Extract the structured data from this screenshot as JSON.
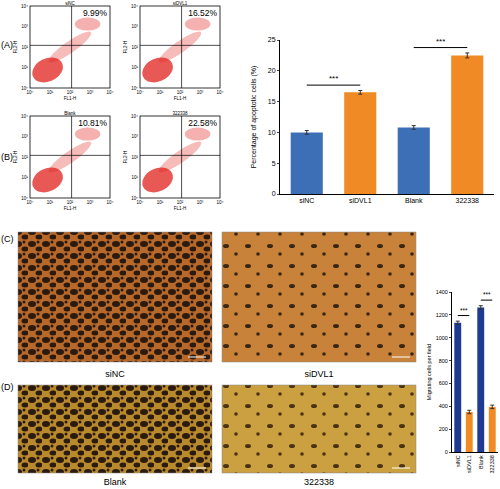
{
  "panels": {
    "labels": [
      "(A)",
      "(B)",
      "(C)",
      "(D)"
    ],
    "flow": {
      "x_label": "FL1-H",
      "y_label": "FL2-H",
      "ticks": [
        "10⁰",
        "10¹",
        "10²",
        "10³",
        "10⁴"
      ],
      "plots": [
        {
          "panel": "A",
          "name": "siNC",
          "percent": "9.99%"
        },
        {
          "panel": "A",
          "name": "siDVL1",
          "percent": "16.52%"
        },
        {
          "panel": "B",
          "name": "Blank",
          "percent": "10.81%"
        },
        {
          "panel": "B",
          "name": "322338",
          "percent": "22.58%"
        }
      ]
    },
    "images": [
      {
        "panel": "C",
        "captions": [
          "siNC",
          "siDVL1"
        ]
      },
      {
        "panel": "D",
        "captions": [
          "Blank",
          "322338"
        ]
      }
    ]
  },
  "chart_data": [
    {
      "type": "bar",
      "y_label": "Percentage of apoptotic cells (%)",
      "categories": [
        "siNC",
        "siDVL1",
        "Blank",
        "322338"
      ],
      "values": [
        10.0,
        16.5,
        10.8,
        22.5
      ],
      "errors": [
        0.3,
        0.3,
        0.3,
        0.4
      ],
      "colors": [
        "#3d6fb6",
        "#f08a24",
        "#3d6fb6",
        "#f08a24"
      ],
      "ylim": [
        0,
        25
      ],
      "yticks": [
        0,
        5,
        10,
        15,
        20,
        25
      ],
      "significance": [
        {
          "from": 0,
          "to": 1,
          "label": "***"
        },
        {
          "from": 2,
          "to": 3,
          "label": "***"
        }
      ]
    },
    {
      "type": "bar",
      "y_label": "Migrating cells per field",
      "categories": [
        "siNC",
        "siDVL1",
        "Blank",
        "322338"
      ],
      "values": [
        1130,
        350,
        1265,
        395
      ],
      "errors": [
        15,
        15,
        15,
        15
      ],
      "colors": [
        "#1f3a93",
        "#f08a24",
        "#1f3a93",
        "#f08a24"
      ],
      "ylim": [
        0,
        1400
      ],
      "yticks": [
        0,
        200,
        400,
        600,
        800,
        1000,
        1200,
        1400
      ],
      "significance": [
        {
          "from": 0,
          "to": 1,
          "label": "***"
        },
        {
          "from": 2,
          "to": 3,
          "label": "***"
        }
      ]
    }
  ]
}
